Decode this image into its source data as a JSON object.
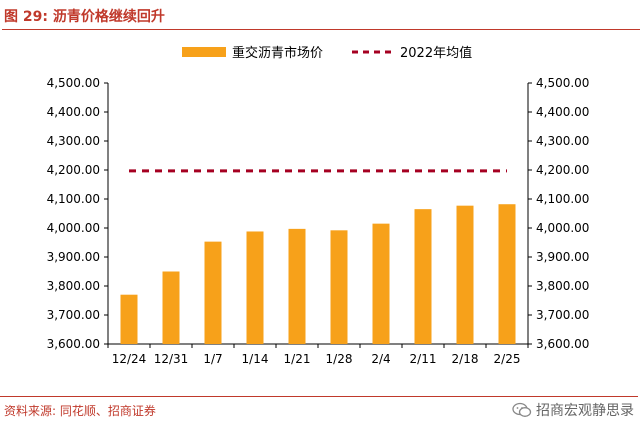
{
  "figure": {
    "title": "图 29:  沥青价格继续回升",
    "source": "资料来源: 同花顺、招商证券",
    "brand": "招商宏观静思录",
    "brand_icon": "wechat-icon"
  },
  "colors": {
    "bar": "#F7A11A",
    "reference_line": "#A50021",
    "accent": "#C0392B"
  },
  "chart_data": {
    "type": "bar",
    "title": "",
    "xlabel": "",
    "ylabel": "",
    "categories": [
      "12/24",
      "12/31",
      "1/7",
      "1/14",
      "1/21",
      "1/28",
      "2/4",
      "2/11",
      "2/18",
      "2/25"
    ],
    "series": [
      {
        "name": "重交沥青市场价",
        "type": "bar",
        "values": [
          3770,
          3850,
          3953,
          3988,
          3997,
          3992,
          4015,
          4065,
          4077,
          4082
        ]
      },
      {
        "name": "2022年均值",
        "type": "line",
        "style": "dashed",
        "values": [
          4197,
          4197,
          4197,
          4197,
          4197,
          4197,
          4197,
          4197,
          4197,
          4197
        ]
      }
    ],
    "ylim": [
      3600,
      4500
    ],
    "yticks": [
      "3,600.00",
      "3,700.00",
      "3,800.00",
      "3,900.00",
      "4,000.00",
      "4,100.00",
      "4,200.00",
      "4,300.00",
      "4,400.00",
      "4,500.00"
    ],
    "secondary_yticks": [
      "3,600.00",
      "3,700.00",
      "3,800.00",
      "3,900.00",
      "4,000.00",
      "4,100.00",
      "4,200.00",
      "4,300.00",
      "4,400.00",
      "4,500.00"
    ],
    "grid": false,
    "legend": "top-center"
  }
}
